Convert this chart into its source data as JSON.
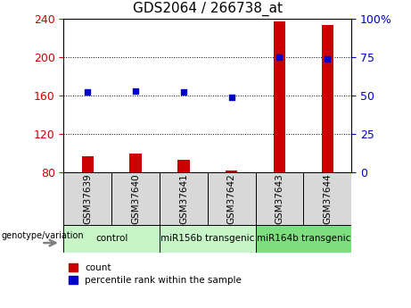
{
  "title": "GDS2064 / 266738_at",
  "samples": [
    "GSM37639",
    "GSM37640",
    "GSM37641",
    "GSM37642",
    "GSM37643",
    "GSM37644"
  ],
  "counts": [
    97,
    100,
    93,
    82,
    237,
    233
  ],
  "percentile_ranks": [
    52,
    53,
    52,
    49,
    75,
    74
  ],
  "ylim_left": [
    80,
    240
  ],
  "ylim_right": [
    0,
    100
  ],
  "yticks_left": [
    80,
    120,
    160,
    200,
    240
  ],
  "yticks_right": [
    0,
    25,
    50,
    75,
    100
  ],
  "bar_color": "#CC0000",
  "dot_color": "#0000CC",
  "group_info": [
    {
      "start": 0,
      "end": 2,
      "label": "control",
      "color": "#c8f5c8"
    },
    {
      "start": 2,
      "end": 4,
      "label": "miR156b transgenic",
      "color": "#c8f5c8"
    },
    {
      "start": 4,
      "end": 6,
      "label": "miR164b transgenic",
      "color": "#7dde7d"
    }
  ],
  "sample_box_color": "#d8d8d8",
  "legend_count_label": "count",
  "legend_pct_label": "percentile rank within the sample",
  "genotype_label": "genotype/variation",
  "background_color": "#ffffff",
  "title_fontsize": 11,
  "bar_width": 0.25
}
